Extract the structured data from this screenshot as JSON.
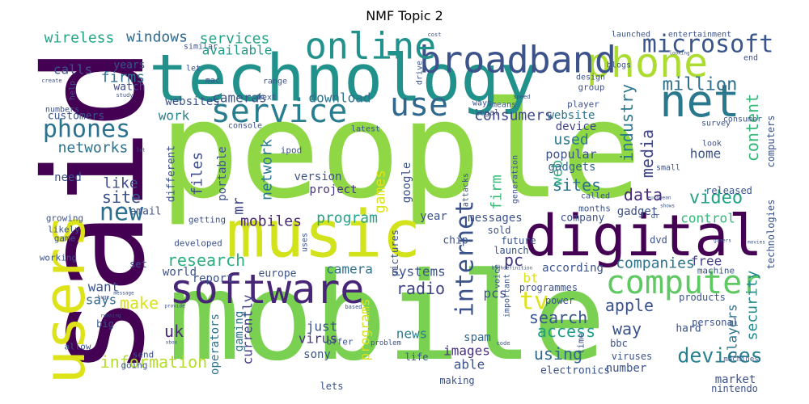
{
  "chart_data": {
    "type": "wordcloud",
    "title": "NMF Topic 2",
    "words": [
      {
        "text": "people",
        "color": "#8fd744"
      },
      {
        "text": "said",
        "color": "#440154"
      },
      {
        "text": "mobile",
        "color": "#7ad151"
      },
      {
        "text": "technology",
        "color": "#21918c"
      },
      {
        "text": "music",
        "color": "#d2e21b"
      },
      {
        "text": "users",
        "color": "#dde318"
      },
      {
        "text": "digital",
        "color": "#440154"
      },
      {
        "text": "phone",
        "color": "#addc30"
      },
      {
        "text": "software",
        "color": "#482677"
      },
      {
        "text": "broadband",
        "color": "#3b528b"
      },
      {
        "text": "net",
        "color": "#2a788e"
      },
      {
        "text": "online",
        "color": "#21918c"
      },
      {
        "text": "computer",
        "color": "#5ec962"
      },
      {
        "text": "service",
        "color": "#287d8e"
      },
      {
        "text": "use",
        "color": "#31688e"
      },
      {
        "text": "internet",
        "color": "#3b528b"
      },
      {
        "text": "microsoft",
        "color": "#39568c"
      },
      {
        "text": "phones",
        "color": "#2c728e"
      },
      {
        "text": "new",
        "color": "#2d708e"
      },
      {
        "text": "tv",
        "color": "#dde318"
      },
      {
        "text": "devices",
        "color": "#27808e"
      },
      {
        "text": "million",
        "color": "#2d708e"
      },
      {
        "text": "video",
        "color": "#20a386"
      },
      {
        "text": "content",
        "color": "#35b779"
      },
      {
        "text": "research",
        "color": "#2ab07f"
      },
      {
        "text": "information",
        "color": "#b5de2b"
      },
      {
        "text": "access",
        "color": "#1f9e89"
      },
      {
        "text": "network",
        "color": "#2a788e"
      },
      {
        "text": "networks",
        "color": "#2c728e"
      },
      {
        "text": "media",
        "color": "#404688"
      },
      {
        "text": "search",
        "color": "#39568c"
      },
      {
        "text": "apple",
        "color": "#3b528b"
      },
      {
        "text": "industry",
        "color": "#2a788e"
      },
      {
        "text": "way",
        "color": "#3b528b"
      },
      {
        "text": "using",
        "color": "#31688e"
      },
      {
        "text": "security",
        "color": "#238a8d"
      },
      {
        "text": "companies",
        "color": "#2c728e"
      },
      {
        "text": "data",
        "color": "#482878"
      },
      {
        "text": "consumers",
        "color": "#3e4a89"
      },
      {
        "text": "sites",
        "color": "#2c728e"
      },
      {
        "text": "radio",
        "color": "#414487"
      },
      {
        "text": "make",
        "color": "#d8e219"
      },
      {
        "text": "games",
        "color": "#dde318"
      },
      {
        "text": "program",
        "color": "#20a386"
      },
      {
        "text": "mobiles",
        "color": "#482677"
      },
      {
        "text": "firm",
        "color": "#38b977"
      },
      {
        "text": "site",
        "color": "#3b528b"
      },
      {
        "text": "like",
        "color": "#3e4a89"
      },
      {
        "text": "web",
        "color": "#29af7f"
      },
      {
        "text": "files",
        "color": "#3e4a89"
      },
      {
        "text": "windows",
        "color": "#31688e"
      },
      {
        "text": "services",
        "color": "#20a386"
      },
      {
        "text": "wireless",
        "color": "#22a785"
      },
      {
        "text": "firms",
        "color": "#2d708e"
      },
      {
        "text": "uk",
        "color": "#482878"
      },
      {
        "text": "pc",
        "color": "#453781"
      },
      {
        "text": "used",
        "color": "#2a788e"
      },
      {
        "text": "work",
        "color": "#25848e"
      },
      {
        "text": "available",
        "color": "#1f9a8a"
      },
      {
        "text": "website",
        "color": "#2c728e"
      },
      {
        "text": "device",
        "color": "#414487"
      },
      {
        "text": "gadgets",
        "color": "#32648e"
      },
      {
        "text": "mr",
        "color": "#404688"
      },
      {
        "text": "home",
        "color": "#3b528b"
      },
      {
        "text": "players",
        "color": "#2c728e"
      },
      {
        "text": "bt",
        "color": "#dde318"
      },
      {
        "text": "download",
        "color": "#2c728e"
      },
      {
        "text": "calls",
        "color": "#3b528b"
      },
      {
        "text": "years",
        "color": "#3b528b"
      },
      {
        "text": "watch",
        "color": "#3e4a89"
      },
      {
        "text": "cameras",
        "color": "#3b528b"
      },
      {
        "text": "camera",
        "color": "#2d708e"
      },
      {
        "text": "says",
        "color": "#31688e"
      },
      {
        "text": "want",
        "color": "#3b528b"
      },
      {
        "text": "just",
        "color": "#3b528b"
      },
      {
        "text": "currently",
        "color": "#433e85"
      },
      {
        "text": "programs",
        "color": "#d8e219"
      },
      {
        "text": "systems",
        "color": "#3b528b"
      },
      {
        "text": "gaming",
        "color": "#2c728e"
      },
      {
        "text": "operators",
        "color": "#2c728e"
      },
      {
        "text": "virus",
        "color": "#46327e"
      },
      {
        "text": "sony",
        "color": "#3b528b"
      },
      {
        "text": "news",
        "color": "#287d8e"
      },
      {
        "text": "images",
        "color": "#46327e"
      },
      {
        "text": "spam",
        "color": "#31688e"
      },
      {
        "text": "able",
        "color": "#3b528b"
      },
      {
        "text": "pcs",
        "color": "#3b528b"
      },
      {
        "text": "number",
        "color": "#3b528b"
      },
      {
        "text": "control",
        "color": "#35b779"
      },
      {
        "text": "free",
        "color": "#433e85"
      },
      {
        "text": "computers",
        "color": "#3b528b"
      },
      {
        "text": "technologies",
        "color": "#3b528b"
      },
      {
        "text": "market",
        "color": "#3b528b"
      },
      {
        "text": "popular",
        "color": "#3b528b"
      },
      {
        "text": "gadget",
        "color": "#3b528b"
      },
      {
        "text": "released",
        "color": "#3b528b"
      },
      {
        "text": "need",
        "color": "#3b528b"
      },
      {
        "text": "project",
        "color": "#46327e"
      },
      {
        "text": "version",
        "color": "#3b528b"
      },
      {
        "text": "websites",
        "color": "#3b528b"
      },
      {
        "text": "customers",
        "color": "#3b528b"
      },
      {
        "text": "messages",
        "color": "#3b528b"
      },
      {
        "text": "year",
        "color": "#3b528b"
      },
      {
        "text": "google",
        "color": "#3b528b"
      },
      {
        "text": "according",
        "color": "#3b528b"
      },
      {
        "text": "portable",
        "color": "#3b528b"
      },
      {
        "text": "different",
        "color": "#3b528b"
      },
      {
        "text": "email",
        "color": "#3b528b"
      },
      {
        "text": "report",
        "color": "#3b528b"
      },
      {
        "text": "world",
        "color": "#3b528b"
      },
      {
        "text": "europe",
        "color": "#3b528b"
      },
      {
        "text": "company",
        "color": "#3b528b"
      },
      {
        "text": "electronics",
        "color": "#3b528b"
      },
      {
        "text": "nintendo",
        "color": "#3b528b"
      },
      {
        "text": "making",
        "color": "#3b528b"
      },
      {
        "text": "lets",
        "color": "#3b528b"
      },
      {
        "text": "life",
        "color": "#3b528b"
      },
      {
        "text": "bbc",
        "color": "#3b528b"
      },
      {
        "text": "viruses",
        "color": "#3b528b"
      },
      {
        "text": "hard",
        "color": "#3b528b"
      },
      {
        "text": "personal",
        "color": "#3b528b"
      },
      {
        "text": "products",
        "color": "#3b528b"
      },
      {
        "text": "power",
        "color": "#3b528b"
      },
      {
        "text": "programmes",
        "color": "#3b528b"
      },
      {
        "text": "future",
        "color": "#3b528b"
      },
      {
        "text": "launch",
        "color": "#3b528b"
      },
      {
        "text": "sold",
        "color": "#3b528b"
      },
      {
        "text": "chip",
        "color": "#3b528b"
      },
      {
        "text": "pictures",
        "color": "#3b528b"
      },
      {
        "text": "machine",
        "color": "#3b528b"
      },
      {
        "text": "dvd",
        "color": "#3b528b"
      },
      {
        "text": "machines",
        "color": "#3b528b"
      },
      {
        "text": "send",
        "color": "#3b528b"
      },
      {
        "text": "going",
        "color": "#3b528b"
      },
      {
        "text": "allow",
        "color": "#3b528b"
      },
      {
        "text": "big",
        "color": "#3b528b"
      },
      {
        "text": "set",
        "color": "#3b528b"
      },
      {
        "text": "working",
        "color": "#3b528b"
      },
      {
        "text": "game",
        "color": "#3b528b"
      },
      {
        "text": "likely",
        "color": "#3b528b"
      },
      {
        "text": "growing",
        "color": "#3b528b"
      },
      {
        "text": "developed",
        "color": "#3b528b"
      },
      {
        "text": "getting",
        "color": "#3b528b"
      },
      {
        "text": "uses",
        "color": "#3b528b"
      },
      {
        "text": "offer",
        "color": "#3b528b"
      },
      {
        "text": "time",
        "color": "#3b528b"
      },
      {
        "text": "voice",
        "color": "#3b528b"
      },
      {
        "text": "important",
        "color": "#3b528b"
      },
      {
        "text": "attacks",
        "color": "#3b528b"
      },
      {
        "text": "generation",
        "color": "#3b528b"
      },
      {
        "text": "months",
        "color": "#3b528b"
      },
      {
        "text": "called",
        "color": "#3b528b"
      },
      {
        "text": "small",
        "color": "#3b528b"
      },
      {
        "text": "look",
        "color": "#3b528b"
      },
      {
        "text": "survey",
        "color": "#3b528b"
      },
      {
        "text": "consumer",
        "color": "#3b528b"
      },
      {
        "text": "player",
        "color": "#3b528b"
      },
      {
        "text": "group",
        "color": "#3b528b"
      },
      {
        "text": "design",
        "color": "#3b528b"
      },
      {
        "text": "blogs",
        "color": "#3b528b"
      },
      {
        "text": "launched",
        "color": "#3b528b"
      },
      {
        "text": "entertainment",
        "color": "#3b528b"
      },
      {
        "text": "end",
        "color": "#3b528b"
      },
      {
        "text": "drive",
        "color": "#3b528b"
      },
      {
        "text": "means",
        "color": "#3b528b"
      },
      {
        "text": "legal",
        "color": "#3b528b"
      },
      {
        "text": "ways",
        "color": "#3b528b"
      },
      {
        "text": "latest",
        "color": "#3b528b"
      },
      {
        "text": "console",
        "color": "#3b528b"
      },
      {
        "text": "ipod",
        "color": "#3b528b"
      },
      {
        "text": "text",
        "color": "#3b528b"
      },
      {
        "text": "mac",
        "color": "#3b528b"
      },
      {
        "text": "range",
        "color": "#3b528b"
      },
      {
        "text": "let",
        "color": "#3b528b"
      },
      {
        "text": "similar",
        "color": "#3b528b"
      },
      {
        "text": "help",
        "color": "#3b528b"
      },
      {
        "text": "numbers",
        "color": "#3b528b"
      },
      {
        "text": "create",
        "color": "#3b528b"
      },
      {
        "text": "cost",
        "color": "#3b528b"
      },
      {
        "text": "speed",
        "color": "#3b528b"
      },
      {
        "text": "study",
        "color": "#3b528b"
      },
      {
        "text": "dr",
        "color": "#3b528b"
      },
      {
        "text": "european",
        "color": "#3b528b"
      },
      {
        "text": "shows",
        "color": "#3b528b"
      },
      {
        "text": "movies",
        "color": "#3b528b"
      },
      {
        "text": "highdefinition",
        "color": "#3b528b"
      },
      {
        "text": "based",
        "color": "#3b528b"
      },
      {
        "text": "problem",
        "color": "#3b528b"
      },
      {
        "text": "code",
        "color": "#3b528b"
      },
      {
        "text": "message",
        "color": "#3b528b"
      },
      {
        "text": "provide",
        "color": "#3b528b"
      },
      {
        "text": "running",
        "color": "#3b528b"
      },
      {
        "text": "gamers",
        "color": "#3b528b"
      },
      {
        "text": "xbox",
        "color": "#3b528b"
      },
      {
        "text": "huge",
        "color": "#3b528b"
      },
      {
        "text": "looking",
        "color": "#3b528b"
      },
      {
        "text": "lot",
        "color": "#3b528b"
      }
    ]
  }
}
